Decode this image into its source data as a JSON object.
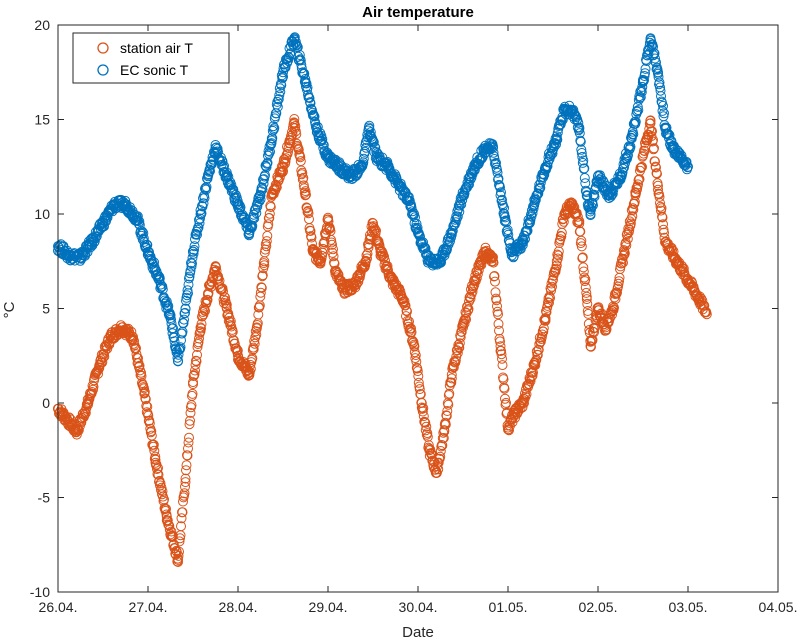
{
  "chart_data": {
    "type": "scatter",
    "title": "Air temperature",
    "xlabel": "Date",
    "ylabel": "°C",
    "ylim": [
      -10,
      20
    ],
    "yticks": [
      -10,
      -5,
      0,
      5,
      10,
      15,
      20
    ],
    "xlim": [
      "2000-04-26",
      "2000-05-04"
    ],
    "xtick_labels": [
      "26.04.",
      "27.04.",
      "28.04.",
      "29.04.",
      "30.04.",
      "01.05.",
      "02.05.",
      "03.05.",
      "04.05."
    ],
    "grid": false,
    "legend_position": "top-left",
    "series": [
      {
        "name": "station air T",
        "color": "#D95319",
        "marker": "circle-open",
        "points": [
          [
            "2000-04-26 00:00",
            -0.3
          ],
          [
            "2000-04-26 03:00",
            -1.0
          ],
          [
            "2000-04-26 05:00",
            -1.5
          ],
          [
            "2000-04-26 08:00",
            0.0
          ],
          [
            "2000-04-26 11:00",
            2.0
          ],
          [
            "2000-04-26 14:00",
            3.5
          ],
          [
            "2000-04-26 17:00",
            4.0
          ],
          [
            "2000-04-26 20:00",
            3.5
          ],
          [
            "2000-04-26 23:00",
            0.5
          ],
          [
            "2000-04-27 02:00",
            -3.0
          ],
          [
            "2000-04-27 05:00",
            -6.0
          ],
          [
            "2000-04-27 08:00",
            -8.3
          ],
          [
            "2000-04-27 10:00",
            -4.0
          ],
          [
            "2000-04-27 12:00",
            1.0
          ],
          [
            "2000-04-27 14:00",
            4.0
          ],
          [
            "2000-04-27 16:00",
            5.8
          ],
          [
            "2000-04-27 18:00",
            7.2
          ],
          [
            "2000-04-27 21:00",
            5.0
          ],
          [
            "2000-04-28 00:00",
            2.5
          ],
          [
            "2000-04-28 03:00",
            1.5
          ],
          [
            "2000-04-28 05:00",
            4.0
          ],
          [
            "2000-04-28 07:00",
            7.5
          ],
          [
            "2000-04-28 09:00",
            11.0
          ],
          [
            "2000-04-28 12:00",
            12.5
          ],
          [
            "2000-04-28 15:00",
            14.8
          ],
          [
            "2000-04-28 18:00",
            11.0
          ],
          [
            "2000-04-28 20:00",
            8.0
          ],
          [
            "2000-04-28 22:00",
            7.5
          ],
          [
            "2000-04-29 00:00",
            9.8
          ],
          [
            "2000-04-29 02:00",
            7.0
          ],
          [
            "2000-04-29 04:00",
            6.0
          ],
          [
            "2000-04-29 07:00",
            6.2
          ],
          [
            "2000-04-29 10:00",
            7.5
          ],
          [
            "2000-04-29 12:00",
            9.5
          ],
          [
            "2000-04-29 14:00",
            8.0
          ],
          [
            "2000-04-29 17:00",
            6.5
          ],
          [
            "2000-04-29 20:00",
            5.5
          ],
          [
            "2000-04-29 23:00",
            3.0
          ],
          [
            "2000-04-30 01:00",
            0.0
          ],
          [
            "2000-04-30 03:00",
            -2.5
          ],
          [
            "2000-04-30 05:00",
            -3.7
          ],
          [
            "2000-04-30 07:00",
            -1.5
          ],
          [
            "2000-04-30 09:00",
            1.5
          ],
          [
            "2000-04-30 12:00",
            4.0
          ],
          [
            "2000-04-30 15:00",
            6.5
          ],
          [
            "2000-04-30 18:00",
            8.0
          ],
          [
            "2000-04-30 20:00",
            7.5
          ],
          [
            "2000-04-30 22:00",
            3.0
          ],
          [
            "2000-05-01 00:00",
            -1.3
          ],
          [
            "2000-05-01 02:00",
            -0.5
          ],
          [
            "2000-05-01 04:00",
            0.0
          ],
          [
            "2000-05-01 07:00",
            2.0
          ],
          [
            "2000-05-01 10:00",
            4.5
          ],
          [
            "2000-05-01 13:00",
            7.5
          ],
          [
            "2000-05-01 15:00",
            10.0
          ],
          [
            "2000-05-01 17:00",
            10.5
          ],
          [
            "2000-05-01 19:00",
            9.5
          ],
          [
            "2000-05-01 21:00",
            5.5
          ],
          [
            "2000-05-01 22:00",
            3.0
          ],
          [
            "2000-05-02 00:00",
            5.0
          ],
          [
            "2000-05-02 02:00",
            4.0
          ],
          [
            "2000-05-02 04:00",
            5.0
          ],
          [
            "2000-05-02 07:00",
            8.0
          ],
          [
            "2000-05-02 10:00",
            11.0
          ],
          [
            "2000-05-02 13:00",
            14.0
          ],
          [
            "2000-05-02 14:00",
            14.8
          ],
          [
            "2000-05-02 16:00",
            11.5
          ],
          [
            "2000-05-02 18:00",
            8.5
          ],
          [
            "2000-05-02 21:00",
            7.5
          ],
          [
            "2000-05-03 00:00",
            6.5
          ],
          [
            "2000-05-03 03:00",
            5.5
          ],
          [
            "2000-05-03 05:00",
            4.7
          ]
        ]
      },
      {
        "name": "EC sonic T",
        "color": "#0072BD",
        "marker": "circle-open",
        "points": [
          [
            "2000-04-26 00:00",
            8.3
          ],
          [
            "2000-04-26 03:00",
            7.8
          ],
          [
            "2000-04-26 06:00",
            7.7
          ],
          [
            "2000-04-26 09:00",
            8.5
          ],
          [
            "2000-04-26 12:00",
            9.5
          ],
          [
            "2000-04-26 15:00",
            10.5
          ],
          [
            "2000-04-26 18:00",
            10.5
          ],
          [
            "2000-04-26 21:00",
            9.8
          ],
          [
            "2000-04-27 00:00",
            8.0
          ],
          [
            "2000-04-27 03:00",
            6.5
          ],
          [
            "2000-04-27 06:00",
            4.5
          ],
          [
            "2000-04-27 08:00",
            2.2
          ],
          [
            "2000-04-27 10:00",
            5.0
          ],
          [
            "2000-04-27 12:00",
            8.0
          ],
          [
            "2000-04-27 14:00",
            10.0
          ],
          [
            "2000-04-27 16:00",
            12.0
          ],
          [
            "2000-04-27 18:00",
            13.5
          ],
          [
            "2000-04-27 21:00",
            12.0
          ],
          [
            "2000-04-28 00:00",
            10.5
          ],
          [
            "2000-04-28 03:00",
            9.0
          ],
          [
            "2000-04-28 06:00",
            11.0
          ],
          [
            "2000-04-28 09:00",
            14.0
          ],
          [
            "2000-04-28 12:00",
            17.5
          ],
          [
            "2000-04-28 15:00",
            19.3
          ],
          [
            "2000-04-28 18:00",
            17.0
          ],
          [
            "2000-04-28 21:00",
            14.5
          ],
          [
            "2000-04-29 00:00",
            13.0
          ],
          [
            "2000-04-29 03:00",
            12.5
          ],
          [
            "2000-04-29 06:00",
            12.0
          ],
          [
            "2000-04-29 09:00",
            12.5
          ],
          [
            "2000-04-29 11:00",
            14.5
          ],
          [
            "2000-04-29 13:00",
            13.0
          ],
          [
            "2000-04-29 16:00",
            12.5
          ],
          [
            "2000-04-29 19:00",
            11.5
          ],
          [
            "2000-04-29 22:00",
            10.5
          ],
          [
            "2000-04-30 00:00",
            9.0
          ],
          [
            "2000-04-30 03:00",
            7.5
          ],
          [
            "2000-04-30 06:00",
            7.5
          ],
          [
            "2000-04-30 09:00",
            9.0
          ],
          [
            "2000-04-30 12:00",
            11.0
          ],
          [
            "2000-04-30 15:00",
            12.5
          ],
          [
            "2000-04-30 18:00",
            13.5
          ],
          [
            "2000-04-30 20:00",
            13.5
          ],
          [
            "2000-04-30 23:00",
            10.0
          ],
          [
            "2000-05-01 01:00",
            7.8
          ],
          [
            "2000-05-01 04:00",
            8.5
          ],
          [
            "2000-05-01 07:00",
            10.5
          ],
          [
            "2000-05-01 10:00",
            12.5
          ],
          [
            "2000-05-01 13:00",
            14.0
          ],
          [
            "2000-05-01 15:00",
            15.5
          ],
          [
            "2000-05-01 17:00",
            15.5
          ],
          [
            "2000-05-01 19:00",
            14.5
          ],
          [
            "2000-05-01 21:00",
            11.0
          ],
          [
            "2000-05-01 22:00",
            10.0
          ],
          [
            "2000-05-02 00:00",
            12.0
          ],
          [
            "2000-05-02 03:00",
            11.0
          ],
          [
            "2000-05-02 06:00",
            12.0
          ],
          [
            "2000-05-02 09:00",
            14.0
          ],
          [
            "2000-05-02 12:00",
            17.0
          ],
          [
            "2000-05-02 14:00",
            19.3
          ],
          [
            "2000-05-02 16:00",
            17.5
          ],
          [
            "2000-05-02 18:00",
            14.5
          ],
          [
            "2000-05-02 20:00",
            13.5
          ],
          [
            "2000-05-02 22:00",
            13.0
          ],
          [
            "2000-05-03 00:00",
            12.5
          ]
        ]
      }
    ]
  }
}
